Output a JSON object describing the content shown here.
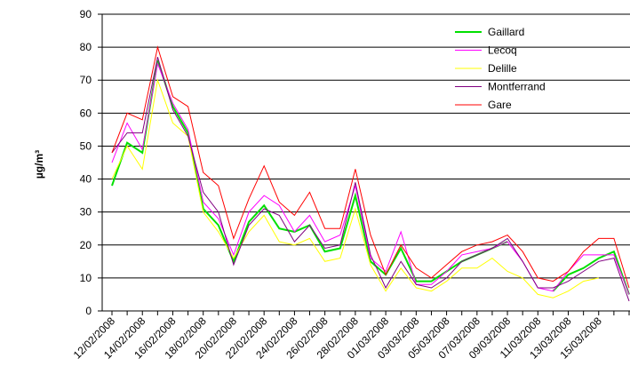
{
  "chart_data": {
    "type": "line",
    "y_label": "µg/m³",
    "categories": [
      "12/02/2008",
      null,
      "14/02/2008",
      null,
      "16/02/2008",
      null,
      "18/02/2008",
      null,
      "20/02/2008",
      null,
      "22/02/2008",
      null,
      "24/02/2008",
      null,
      "26/02/2008",
      null,
      "28/02/2008",
      null,
      "01/03/2008",
      null,
      "03/03/2008",
      null,
      "05/03/2008",
      null,
      "07/03/2008",
      null,
      "09/03/2008",
      null,
      "11/03/2008",
      null,
      "13/03/2008",
      null,
      "15/03/2008",
      null,
      null
    ],
    "series": [
      {
        "name": "Gaillard",
        "color": "#00e000",
        "width": 2,
        "values": [
          38,
          51,
          48,
          76,
          62,
          54,
          31,
          26,
          15,
          27,
          32,
          25,
          24,
          26,
          18,
          19,
          35,
          15,
          11,
          19,
          9,
          9,
          12,
          15,
          17,
          19,
          21,
          null,
          null,
          6,
          11,
          13,
          16,
          18,
          5
        ]
      },
      {
        "name": "Lecoq",
        "color": "#ff00ff",
        "width": 1,
        "values": [
          45,
          57,
          49,
          75,
          63,
          55,
          33,
          28,
          17,
          30,
          35,
          32,
          24,
          29,
          21,
          23,
          38,
          16,
          12,
          24,
          8,
          8,
          12,
          17,
          18,
          19,
          21,
          15,
          7,
          6,
          12,
          17,
          17,
          17,
          5
        ]
      },
      {
        "name": "Delille",
        "color": "#ffff00",
        "width": 1,
        "values": [
          40,
          50,
          43,
          70,
          57,
          53,
          30,
          24,
          16,
          24,
          29,
          21,
          20,
          22,
          15,
          16,
          31,
          14,
          6,
          13,
          7,
          6,
          9,
          13,
          13,
          16,
          12,
          10,
          5,
          4,
          6,
          9,
          10,
          null,
          null
        ]
      },
      {
        "name": "Montferrand",
        "color": "#800080",
        "width": 1,
        "values": [
          48,
          54,
          54,
          77,
          61,
          53,
          36,
          30,
          14,
          26,
          31,
          29,
          21,
          26,
          19,
          20,
          39,
          17,
          7,
          15,
          8,
          7,
          10,
          15,
          17,
          19,
          22,
          15,
          7,
          7,
          9,
          12,
          15,
          16,
          3
        ]
      },
      {
        "name": "Gare",
        "color": "#ff0000",
        "width": 1,
        "values": [
          48,
          60,
          58,
          80,
          65,
          62,
          42,
          38,
          22,
          34,
          44,
          33,
          29,
          36,
          25,
          25,
          43,
          23,
          11,
          20,
          13,
          10,
          14,
          18,
          20,
          21,
          23,
          18,
          10,
          9,
          12,
          18,
          22,
          22,
          7
        ]
      }
    ],
    "ylim": [
      0,
      90
    ],
    "yticks": [
      0,
      10,
      20,
      30,
      40,
      50,
      60,
      70,
      80,
      90
    ],
    "grid": true,
    "legend": "upper right"
  }
}
